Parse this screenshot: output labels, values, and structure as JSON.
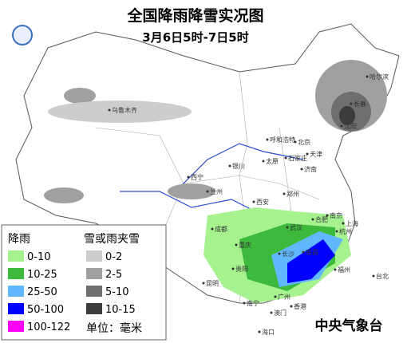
{
  "header": {
    "title": "全国降雨降雪实况图",
    "subtitle": "3月6日5时-7日5时"
  },
  "cities": [
    "乌鲁木齐",
    "哈尔滨",
    "长春",
    "沈阳",
    "呼和浩特",
    "北京",
    "天津",
    "石家庄",
    "太原",
    "银川",
    "济南",
    "西宁",
    "兰州",
    "郑州",
    "西安",
    "合肥",
    "南京",
    "上海",
    "成都",
    "武汉",
    "杭州",
    "重庆",
    "长沙",
    "南昌",
    "贵阳",
    "福州",
    "昆明",
    "南宁",
    "广州",
    "台北",
    "香港",
    "澳门",
    "海口"
  ],
  "legend": {
    "rain_title": "降雨",
    "rain": [
      {
        "label": "0-10",
        "color": "#a6f28f"
      },
      {
        "label": "10-25",
        "color": "#3dba3d"
      },
      {
        "label": "25-50",
        "color": "#61b8ff"
      },
      {
        "label": "50-100",
        "color": "#0000fe"
      },
      {
        "label": "100-122",
        "color": "#fa00fa"
      }
    ],
    "snow_title": "雪或雨夹雪",
    "snow": [
      {
        "label": "0-2",
        "color": "#cdcdcd"
      },
      {
        "label": "2-5",
        "color": "#a0a0a0"
      },
      {
        "label": "5-10",
        "color": "#6e6e6e"
      },
      {
        "label": "10-15",
        "color": "#3c3c3c"
      }
    ],
    "unit": "单位：毫米"
  },
  "footer": {
    "source": "中央气象台"
  }
}
